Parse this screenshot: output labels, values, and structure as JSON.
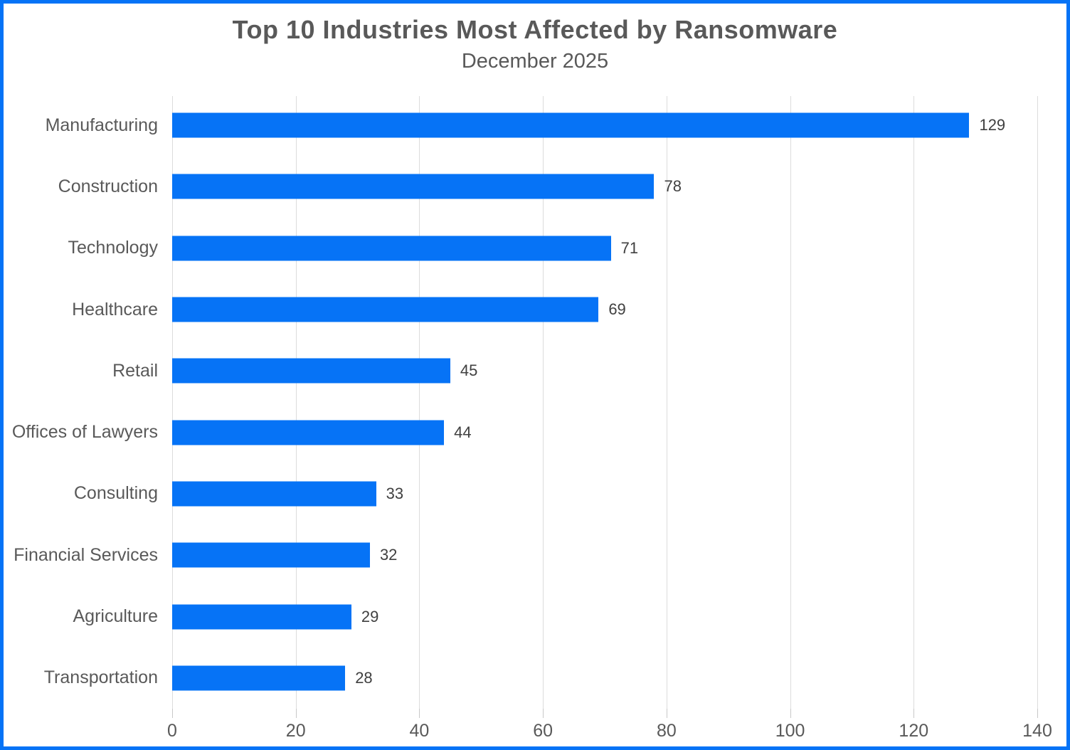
{
  "frame": {
    "border_color": "#0673F6",
    "background": "#FFFFFF"
  },
  "chart_data": {
    "type": "bar",
    "orientation": "horizontal",
    "title": "Top 10 Industries Most Affected by Ransomware",
    "subtitle": "December 2025",
    "categories": [
      "Manufacturing",
      "Construction",
      "Technology",
      "Healthcare",
      "Retail",
      "Offices of Lawyers",
      "Consulting",
      "Financial Services",
      "Agriculture",
      "Transportation"
    ],
    "values": [
      129,
      78,
      71,
      69,
      45,
      44,
      33,
      32,
      29,
      28
    ],
    "xlabel": "",
    "ylabel": "",
    "xlim": [
      0,
      140
    ],
    "xticks": [
      0,
      20,
      40,
      60,
      80,
      100,
      120,
      140
    ],
    "grid": true,
    "legend_position": "none",
    "value_labels": "outside-end",
    "bar_color": "#0673F6",
    "gridline_color": "#DCDCDC",
    "tick_color": "#C8C8C8",
    "category_label_color": "#595959",
    "value_label_color": "#404040",
    "title_color": "#595959"
  }
}
